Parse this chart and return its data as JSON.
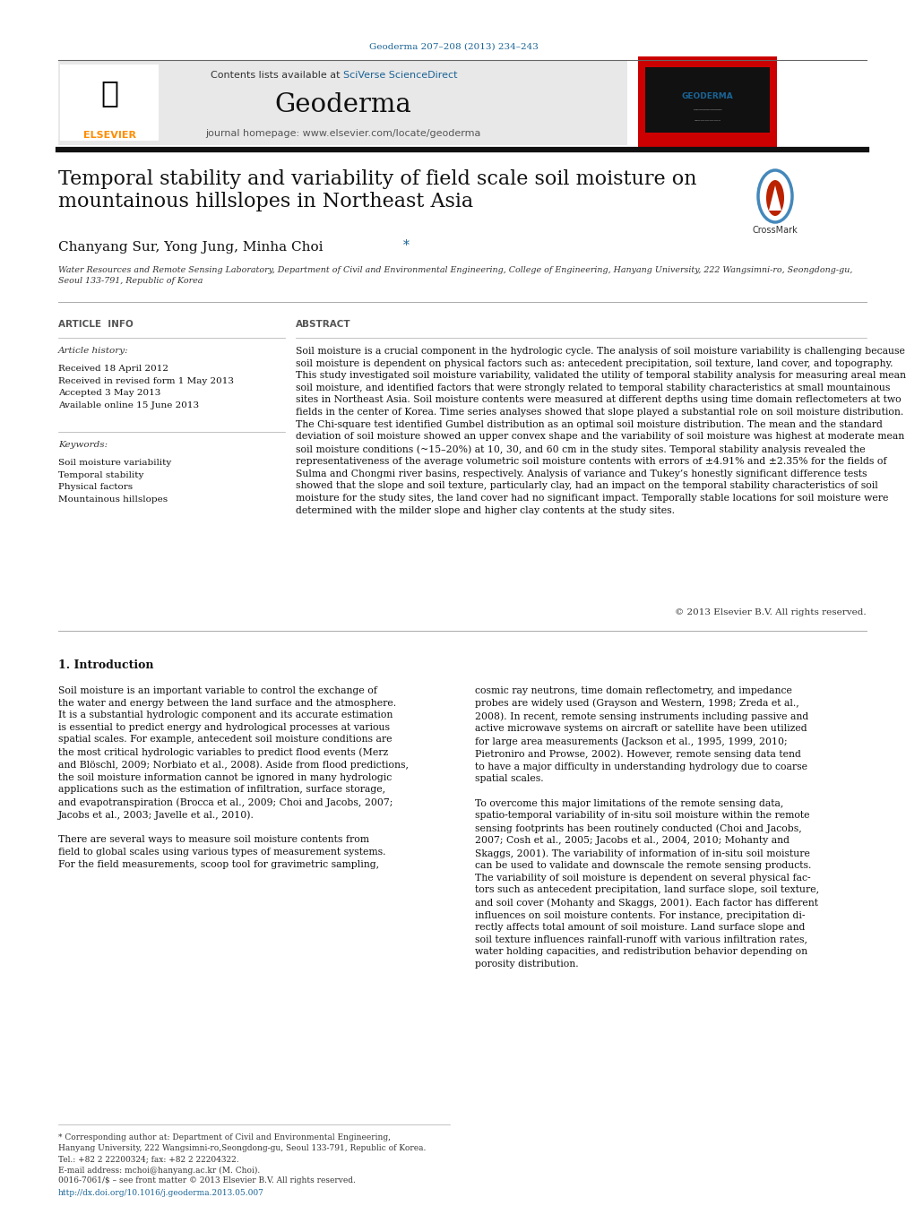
{
  "page_width": 9.92,
  "page_height": 13.23,
  "bg_color": "#ffffff",
  "journal_ref": "Geoderma 207–208 (2013) 234–243",
  "journal_ref_color": "#1a6496",
  "header_bg": "#e8e8e8",
  "sciverse_color": "#1a6496",
  "journal_name": "Geoderma",
  "journal_homepage": "journal homepage: www.elsevier.com/locate/geoderma",
  "elsevier_color": "#ff8c00",
  "paper_title": "Temporal stability and variability of field scale soil moisture on\nmountainous hillslopes in Northeast Asia",
  "authors": "Chanyang Sur, Yong Jung, Minha Choi",
  "author_star": " *",
  "affiliation": "Water Resources and Remote Sensing Laboratory, Department of Civil and Environmental Engineering, College of Engineering, Hanyang University, 222 Wangsimni-ro, Seongdong-gu,\nSeoul 133-791, Republic of Korea",
  "article_info_title": "ARTICLE  INFO",
  "abstract_title": "ABSTRACT",
  "article_history_label": "Article history:",
  "article_history": "Received 18 April 2012\nReceived in revised form 1 May 2013\nAccepted 3 May 2013\nAvailable online 15 June 2013",
  "keywords_label": "Keywords:",
  "keywords": "Soil moisture variability\nTemporal stability\nPhysical factors\nMountainous hillslopes",
  "abstract_text": "Soil moisture is a crucial component in the hydrologic cycle. The analysis of soil moisture variability is challenging because soil moisture is dependent on physical factors such as: antecedent precipitation, soil texture, land cover, and topography. This study investigated soil moisture variability, validated the utility of temporal stability analysis for measuring areal mean soil moisture, and identified factors that were strongly related to temporal stability characteristics at small mountainous sites in Northeast Asia. Soil moisture contents were measured at different depths using time domain reflectometers at two fields in the center of Korea. Time series analyses showed that slope played a substantial role on soil moisture distribution. The Chi-square test identified Gumbel distribution as an optimal soil moisture distribution. The mean and the standard deviation of soil moisture showed an upper convex shape and the variability of soil moisture was highest at moderate mean soil moisture conditions (~15–20%) at 10, 30, and 60 cm in the study sites. Temporal stability analysis revealed the representativeness of the average volumetric soil moisture contents with errors of ±4.91% and ±2.35% for the fields of Sulma and Chongmi river basins, respectively. Analysis of variance and Tukey’s honestly significant difference tests showed that the slope and soil texture, particularly clay, had an impact on the temporal stability characteristics of soil moisture for the study sites, the land cover had no significant impact. Temporally stable locations for soil moisture were determined with the milder slope and higher clay contents at the study sites.",
  "copyright": "© 2013 Elsevier B.V. All rights reserved.",
  "intro_title": "1. Introduction",
  "intro_col1": "Soil moisture is an important variable to control the exchange of\nthe water and energy between the land surface and the atmosphere.\nIt is a substantial hydrologic component and its accurate estimation\nis essential to predict energy and hydrological processes at various\nspatial scales. For example, antecedent soil moisture conditions are\nthe most critical hydrologic variables to predict flood events (Merz\nand Blöschl, 2009; Norbiato et al., 2008). Aside from flood predictions,\nthe soil moisture information cannot be ignored in many hydrologic\napplications such as the estimation of infiltration, surface storage,\nand evapotranspiration (Brocca et al., 2009; Choi and Jacobs, 2007;\nJacobs et al., 2003; Javelle et al., 2010).\n\nThere are several ways to measure soil moisture contents from\nfield to global scales using various types of measurement systems.\nFor the field measurements, scoop tool for gravimetric sampling,",
  "intro_col2": "cosmic ray neutrons, time domain reflectometry, and impedance\nprobes are widely used (Grayson and Western, 1998; Zreda et al.,\n2008). In recent, remote sensing instruments including passive and\nactive microwave systems on aircraft or satellite have been utilized\nfor large area measurements (Jackson et al., 1995, 1999, 2010;\nPietroniro and Prowse, 2002). However, remote sensing data tend\nto have a major difficulty in understanding hydrology due to coarse\nspatial scales.\n\nTo overcome this major limitations of the remote sensing data,\nspatio-temporal variability of in-situ soil moisture within the remote\nsensing footprints has been routinely conducted (Choi and Jacobs,\n2007; Cosh et al., 2005; Jacobs et al., 2004, 2010; Mohanty and\nSkaggs, 2001). The variability of information of in-situ soil moisture\ncan be used to validate and downscale the remote sensing products.\nThe variability of soil moisture is dependent on several physical fac-\ntors such as antecedent precipitation, land surface slope, soil texture,\nand soil cover (Mohanty and Skaggs, 2001). Each factor has different\ninfluences on soil moisture contents. For instance, precipitation di-\nrectly affects total amount of soil moisture. Land surface slope and\nsoil texture influences rainfall-runoff with various infiltration rates,\nwater holding capacities, and redistribution behavior depending on\nporosity distribution.",
  "footnote": "* Corresponding author at: Department of Civil and Environmental Engineering,\nHanyang University, 222 Wangsimni-ro,Seongdong-gu, Seoul 133-791, Republic of Korea.\nTel.: +82 2 22200324; fax: +82 2 22204322.\nE-mail address: mchoi@hanyang.ac.kr (M. Choi).",
  "doi_line1": "0016-7061/$ – see front matter © 2013 Elsevier B.V. All rights reserved.",
  "doi_line2": "http://dx.doi.org/10.1016/j.geoderma.2013.05.007",
  "doi_color": "#1a6496"
}
